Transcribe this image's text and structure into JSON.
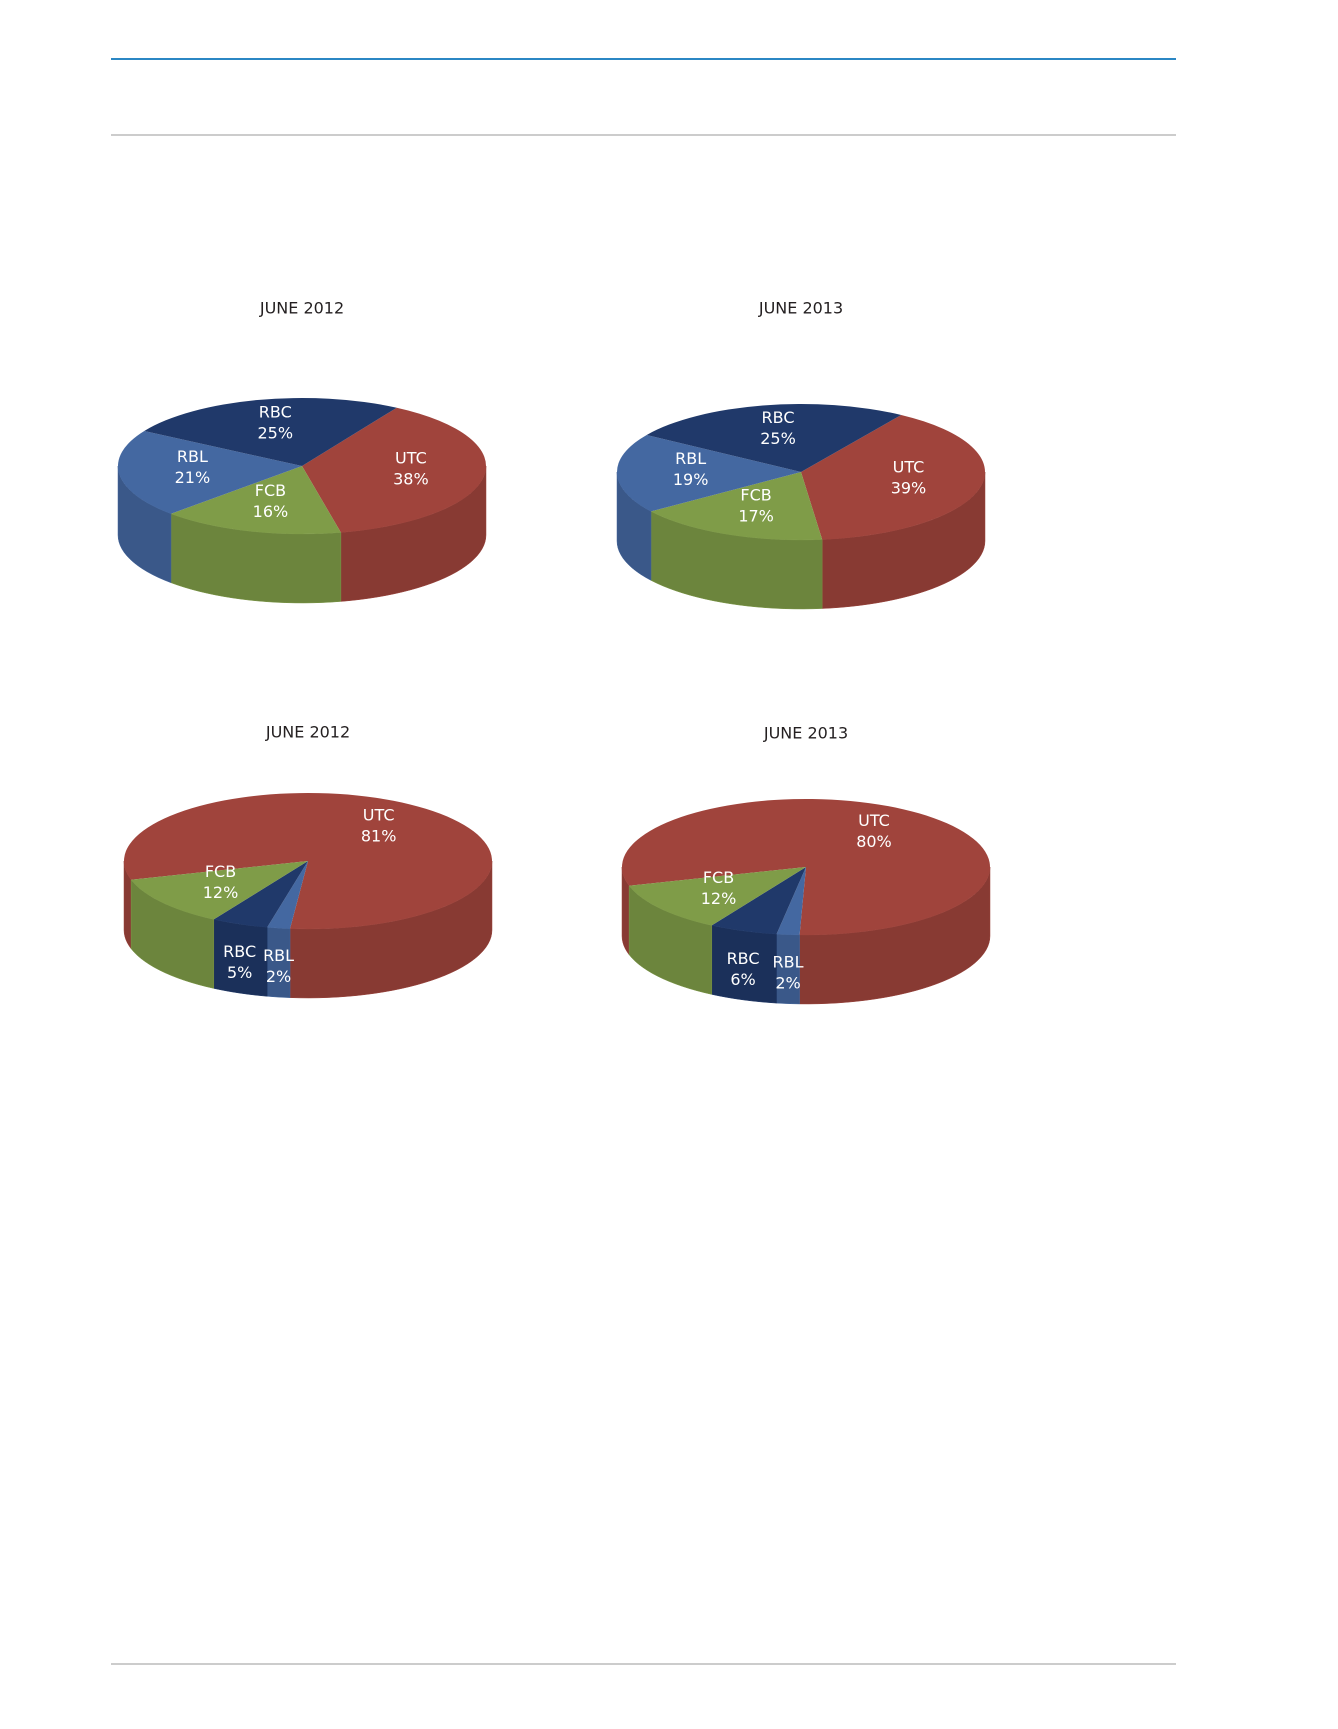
{
  "chart_data": [
    {
      "type": "pie",
      "title": "JUNE 2012",
      "categories": [
        "UTC",
        "FCB",
        "RBL",
        "RBC"
      ],
      "values": [
        38,
        16,
        21,
        25
      ],
      "value_labels": [
        "38%",
        "16%",
        "21%",
        "25%"
      ],
      "colors": [
        "#a0443c",
        "#7f9c48",
        "#4468a1",
        "#20396a"
      ]
    },
    {
      "type": "pie",
      "title": "JUNE 2013",
      "categories": [
        "UTC",
        "FCB",
        "RBL",
        "RBC"
      ],
      "values": [
        39,
        17,
        19,
        25
      ],
      "value_labels": [
        "39%",
        "17%",
        "19%",
        "25%"
      ],
      "colors": [
        "#a0443c",
        "#7f9c48",
        "#4468a1",
        "#20396a"
      ]
    },
    {
      "type": "pie",
      "title": "JUNE 2012",
      "categories": [
        "UTC",
        "RBL",
        "RBC",
        "FCB"
      ],
      "values": [
        81,
        2,
        5,
        12
      ],
      "value_labels": [
        "81%",
        "2%",
        "5%",
        "12%"
      ],
      "colors": [
        "#a0443c",
        "#4468a1",
        "#20396a",
        "#7f9c48"
      ]
    },
    {
      "type": "pie",
      "title": "JUNE 2013",
      "categories": [
        "UTC",
        "RBL",
        "RBC",
        "FCB"
      ],
      "values": [
        80,
        2,
        6,
        12
      ],
      "value_labels": [
        "80%",
        "2%",
        "6%",
        "12%"
      ],
      "colors": [
        "#a0443c",
        "#4468a1",
        "#20396a",
        "#7f9c48"
      ]
    }
  ]
}
